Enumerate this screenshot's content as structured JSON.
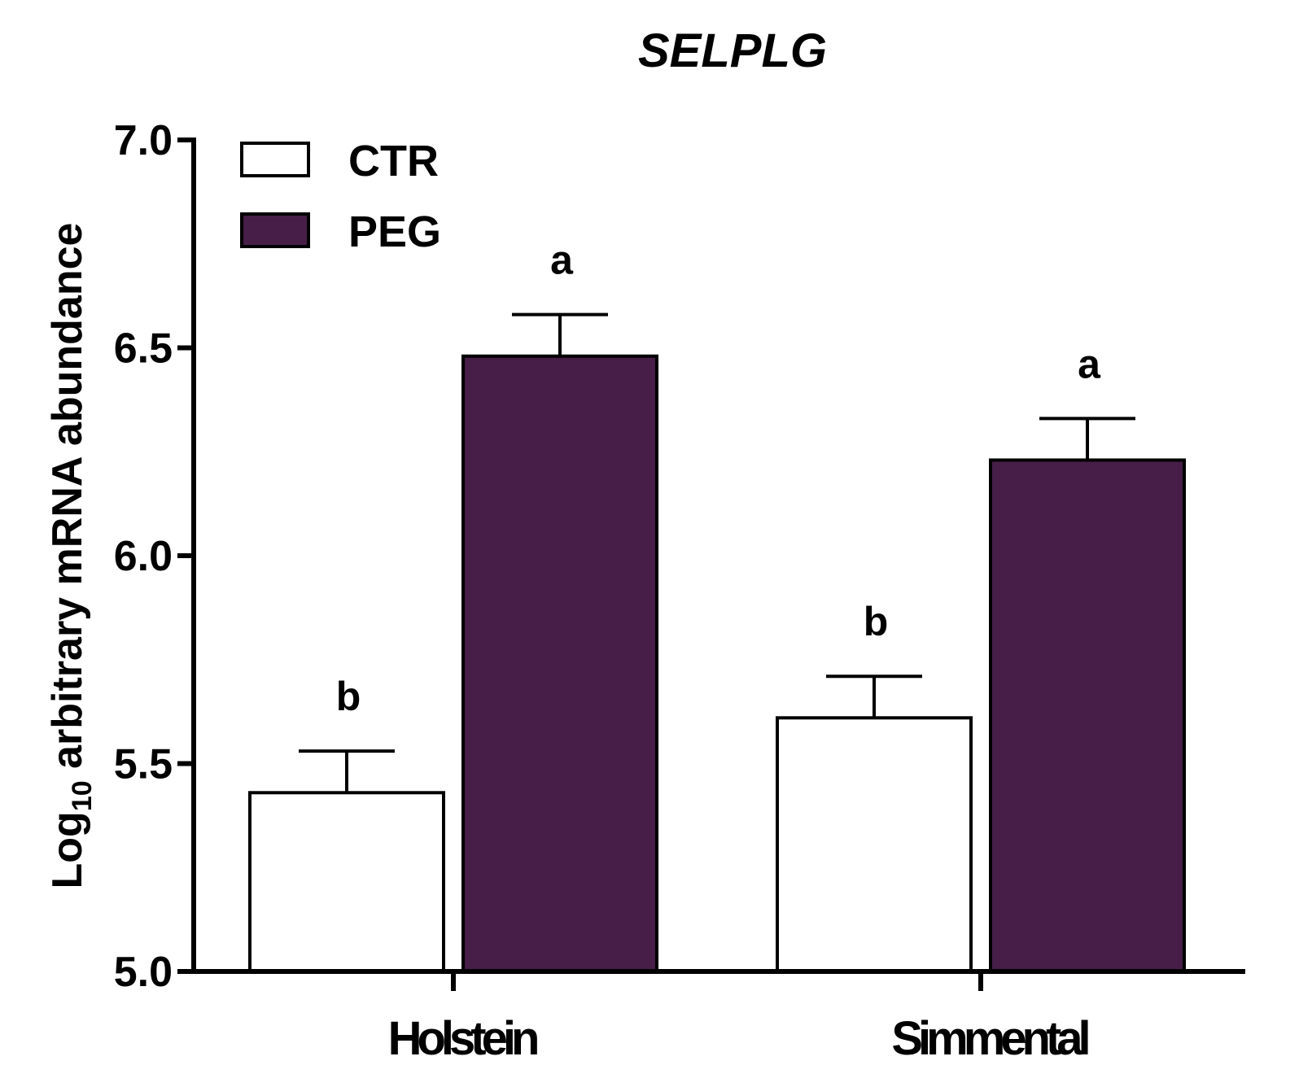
{
  "chart_data": {
    "type": "bar",
    "title": "SELPLG",
    "ylabel_main": "Log",
    "ylabel_sub": "10",
    "ylabel_rest": " arbitrary mRNA abundance",
    "xlabel": "",
    "ylim": [
      5.0,
      7.0
    ],
    "yticks": [
      "5.0",
      "5.5",
      "6.0",
      "6.5",
      "7.0"
    ],
    "categories": [
      "Holstein",
      "Simmental"
    ],
    "series": [
      {
        "name": "CTR",
        "color": "#ffffff",
        "values": [
          5.43,
          5.61
        ],
        "errors": [
          0.1,
          0.1
        ],
        "labels": [
          "b",
          "b"
        ]
      },
      {
        "name": "PEG",
        "color": "#461e47",
        "values": [
          6.48,
          6.23
        ],
        "errors": [
          0.1,
          0.1
        ],
        "labels": [
          "a",
          "a"
        ]
      }
    ],
    "legend_position": "top-left"
  }
}
